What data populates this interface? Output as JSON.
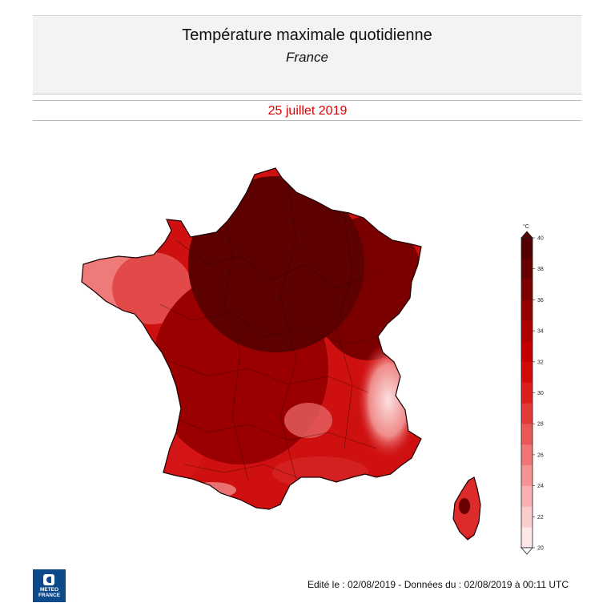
{
  "header": {
    "title": "Température maximale quotidienne",
    "subtitle": "France",
    "date": "25 juillet 2019"
  },
  "footer": {
    "edit_text": "Edité le : 02/08/2019 - Données du : 02/08/2019 à 00:11 UTC"
  },
  "logo": {
    "line1": "METEO",
    "line2": "FRANCE",
    "color": "#0c4a8c"
  },
  "colorbar": {
    "unit": "°C",
    "ticks": [
      "20",
      "22",
      "24",
      "26",
      "28",
      "30",
      "32",
      "34",
      "36",
      "38",
      "40"
    ],
    "colors": [
      "#fde6e6",
      "#fbcccc",
      "#f8b0b0",
      "#f59393",
      "#f07676",
      "#ea5757",
      "#e43a3a",
      "#dc1e1e",
      "#d20a0a",
      "#c40000",
      "#ae0000",
      "#960000",
      "#7c0000",
      "#660000",
      "#520000"
    ]
  },
  "map": {
    "region": "France",
    "zones": [
      {
        "name": "north-paris-basin",
        "level": "38-40",
        "color": "#5c0000"
      },
      {
        "name": "north-east",
        "level": "36-38",
        "color": "#7a0000"
      },
      {
        "name": "centre-west",
        "level": "34-36",
        "color": "#9a0000"
      },
      {
        "name": "atlantic-coast",
        "level": "30-32",
        "color": "#d51515"
      },
      {
        "name": "brittany-west",
        "level": "26-28",
        "color": "#ef7a7a"
      },
      {
        "name": "alps",
        "level": "20-28",
        "color": "#f2a5a5"
      },
      {
        "name": "mediterranean",
        "level": "30-34",
        "color": "#d42020"
      },
      {
        "name": "corsica",
        "level": "28-32",
        "color": "#dd2a2a"
      }
    ]
  }
}
